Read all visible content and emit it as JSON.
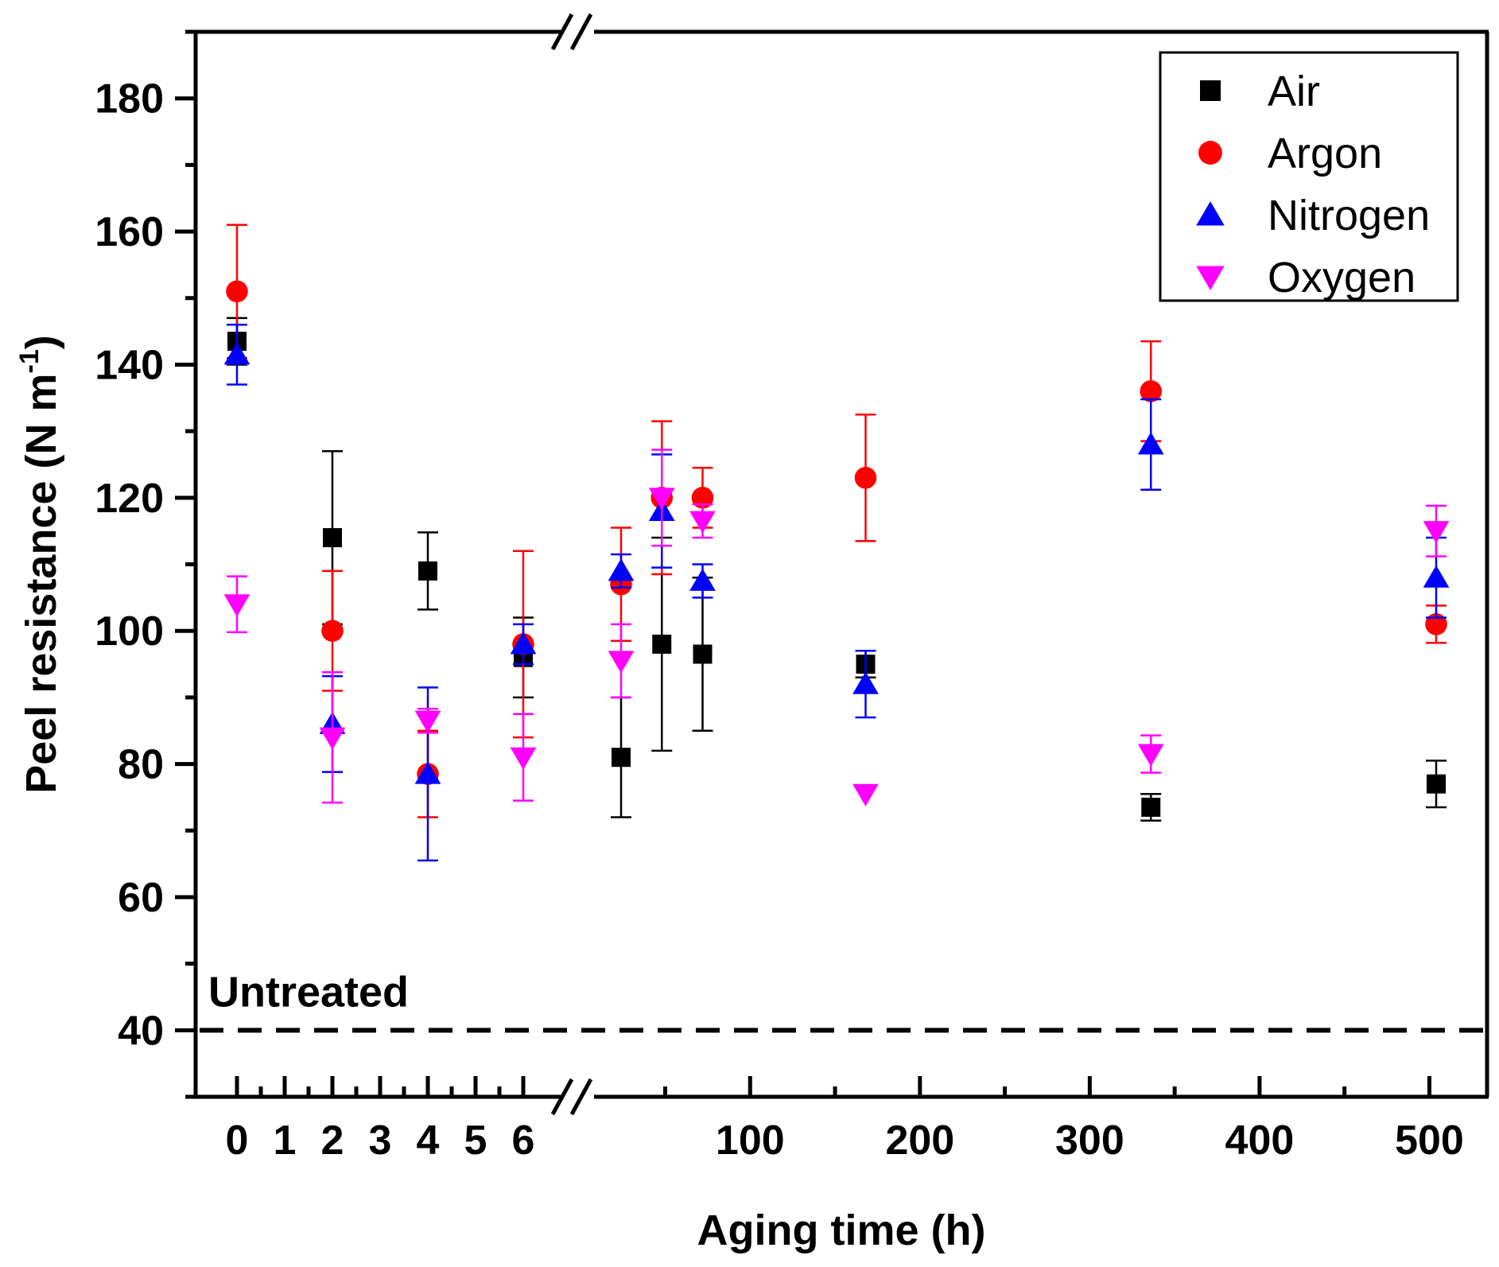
{
  "chart_data": {
    "type": "scatter",
    "title": "",
    "xlabel": "Aging time (h)",
    "ylabel": "Peel resistance (N m",
    "ylabel_sup": "-1",
    "ylim": [
      30,
      190
    ],
    "y_ticks": [
      40,
      60,
      80,
      100,
      120,
      140,
      160,
      180
    ],
    "x_axis_broken": true,
    "x_segment1": {
      "range": [
        0,
        6
      ],
      "ticks": [
        0,
        1,
        2,
        3,
        4,
        5,
        6
      ]
    },
    "x_segment2": {
      "range": [
        24,
        504
      ],
      "ticks": [
        100,
        200,
        300,
        400,
        500
      ]
    },
    "legend_position": "top-right",
    "reference_line": {
      "label": "Untreated",
      "y": 40,
      "style": "dashed"
    },
    "series": [
      {
        "name": "Air",
        "marker": "square",
        "color": "#000000",
        "points": [
          {
            "x": 0,
            "y": 143.5,
            "err": 3.5
          },
          {
            "x": 2,
            "y": 114,
            "err": 13
          },
          {
            "x": 4,
            "y": 109,
            "err": 5.8
          },
          {
            "x": 6,
            "y": 96,
            "err": 6
          },
          {
            "x": 24,
            "y": 81,
            "err": 9
          },
          {
            "x": 48,
            "y": 98,
            "err": 16
          },
          {
            "x": 72,
            "y": 96.5,
            "err": 11.5
          },
          {
            "x": 168,
            "y": 95,
            "err": 2
          },
          {
            "x": 336,
            "y": 73.5,
            "err": 2
          },
          {
            "x": 504,
            "y": 77,
            "err": 3.5
          }
        ]
      },
      {
        "name": "Argon",
        "marker": "circle",
        "color": "#ff0000",
        "points": [
          {
            "x": 0,
            "y": 151,
            "err": 10
          },
          {
            "x": 2,
            "y": 100,
            "err": 9
          },
          {
            "x": 4,
            "y": 78.5,
            "err": 6.5
          },
          {
            "x": 6,
            "y": 98,
            "err": 14
          },
          {
            "x": 24,
            "y": 107,
            "err": 8.5
          },
          {
            "x": 48,
            "y": 120,
            "err": 11.5
          },
          {
            "x": 72,
            "y": 120,
            "err": 4.5
          },
          {
            "x": 168,
            "y": 123,
            "err": 9.5
          },
          {
            "x": 336,
            "y": 136,
            "err": 7.5
          },
          {
            "x": 504,
            "y": 101,
            "err": 2.8
          }
        ]
      },
      {
        "name": "Nitrogen",
        "marker": "triangle-up",
        "color": "#0000ff",
        "points": [
          {
            "x": 0,
            "y": 141.5,
            "err": 4.5
          },
          {
            "x": 2,
            "y": 86,
            "err": 7.2
          },
          {
            "x": 4,
            "y": 78.5,
            "err": 13
          },
          {
            "x": 6,
            "y": 98,
            "err": 3
          },
          {
            "x": 24,
            "y": 109,
            "err": 2.5
          },
          {
            "x": 48,
            "y": 118,
            "err": 8.5
          },
          {
            "x": 72,
            "y": 107.5,
            "err": 2.5
          },
          {
            "x": 168,
            "y": 92,
            "err": 5
          },
          {
            "x": 336,
            "y": 128,
            "err": 6.8
          },
          {
            "x": 504,
            "y": 108,
            "err": 6
          }
        ]
      },
      {
        "name": "Oxygen",
        "marker": "triangle-down",
        "color": "#ff00ff",
        "points": [
          {
            "x": 0,
            "y": 104,
            "err": 4.2
          },
          {
            "x": 2,
            "y": 84,
            "err": 9.8
          },
          {
            "x": 4,
            "y": 86.5,
            "err": 1.8
          },
          {
            "x": 6,
            "y": 81,
            "err": 6.5
          },
          {
            "x": 24,
            "y": 95.5,
            "err": 5.5
          },
          {
            "x": 48,
            "y": 120,
            "err": 7.2
          },
          {
            "x": 72,
            "y": 116.5,
            "err": 2.5
          },
          {
            "x": 168,
            "y": 75.5,
            "err": 0
          },
          {
            "x": 336,
            "y": 81.5,
            "err": 2.8
          },
          {
            "x": 504,
            "y": 115,
            "err": 3.8
          }
        ]
      }
    ]
  }
}
